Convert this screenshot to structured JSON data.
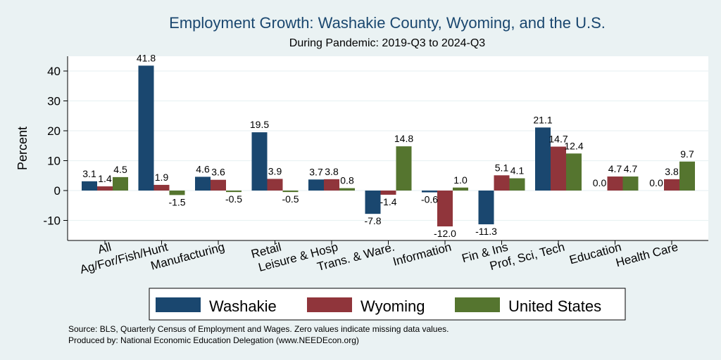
{
  "chart_data": {
    "type": "bar",
    "title": "Employment Growth: Washakie County, Wyoming, and the U.S.",
    "subtitle": "During Pandemic: 2019-Q3 to 2024-Q3",
    "ylabel": "Percent",
    "xlabel": "",
    "ylim": [
      -15,
      45
    ],
    "yticks": [
      -10,
      0,
      10,
      20,
      30,
      40
    ],
    "yticklabels": [
      "-10",
      "0",
      "10",
      "20",
      "30",
      "40"
    ],
    "categories": [
      "All",
      "Ag/For/Fish/Hunt",
      "Manufacturing",
      "Retail",
      "Leisure & Hosp",
      "Trans. & Ware.",
      "Information",
      "Fin & Ins",
      "Prof, Sci, Tech",
      "Education",
      "Health Care"
    ],
    "series": [
      {
        "name": "Washakie",
        "color": "#1a476f",
        "values": [
          3.1,
          41.8,
          4.6,
          19.5,
          3.7,
          -7.8,
          -0.6,
          -11.3,
          21.1,
          0.0,
          0.0
        ],
        "labels": [
          "3.1",
          "41.8",
          "4.6",
          "19.5",
          "3.7",
          "-7.8",
          "-0.6",
          "-11.3",
          "21.1",
          "0.0",
          "0.0"
        ]
      },
      {
        "name": "Wyoming",
        "color": "#90353b",
        "values": [
          1.4,
          1.9,
          3.6,
          3.9,
          3.8,
          -1.4,
          -12.0,
          5.1,
          14.7,
          4.7,
          3.8
        ],
        "labels": [
          "1.4",
          "1.9",
          "3.6",
          "3.9",
          "3.8",
          "-1.4",
          "-12.0",
          "5.1",
          "14.7",
          "4.7",
          "3.8"
        ]
      },
      {
        "name": "United States",
        "color": "#55752f",
        "values": [
          4.5,
          -1.5,
          -0.5,
          -0.5,
          0.8,
          14.8,
          1.0,
          4.1,
          12.4,
          4.7,
          9.7
        ],
        "labels": [
          "4.5",
          "-1.5",
          "-0.5",
          "-0.5",
          "0.8",
          "14.8",
          "1.0",
          "4.1",
          "12.4",
          "4.7",
          "9.7"
        ]
      }
    ],
    "legend": "bottom",
    "grid": true
  },
  "notes": {
    "source": "Source: BLS, Quarterly Census of Employment and Wages. Zero values indicate missing data values.",
    "produced": "Produced by: National Economic Education Delegation (www.NEEDEcon.org)"
  }
}
